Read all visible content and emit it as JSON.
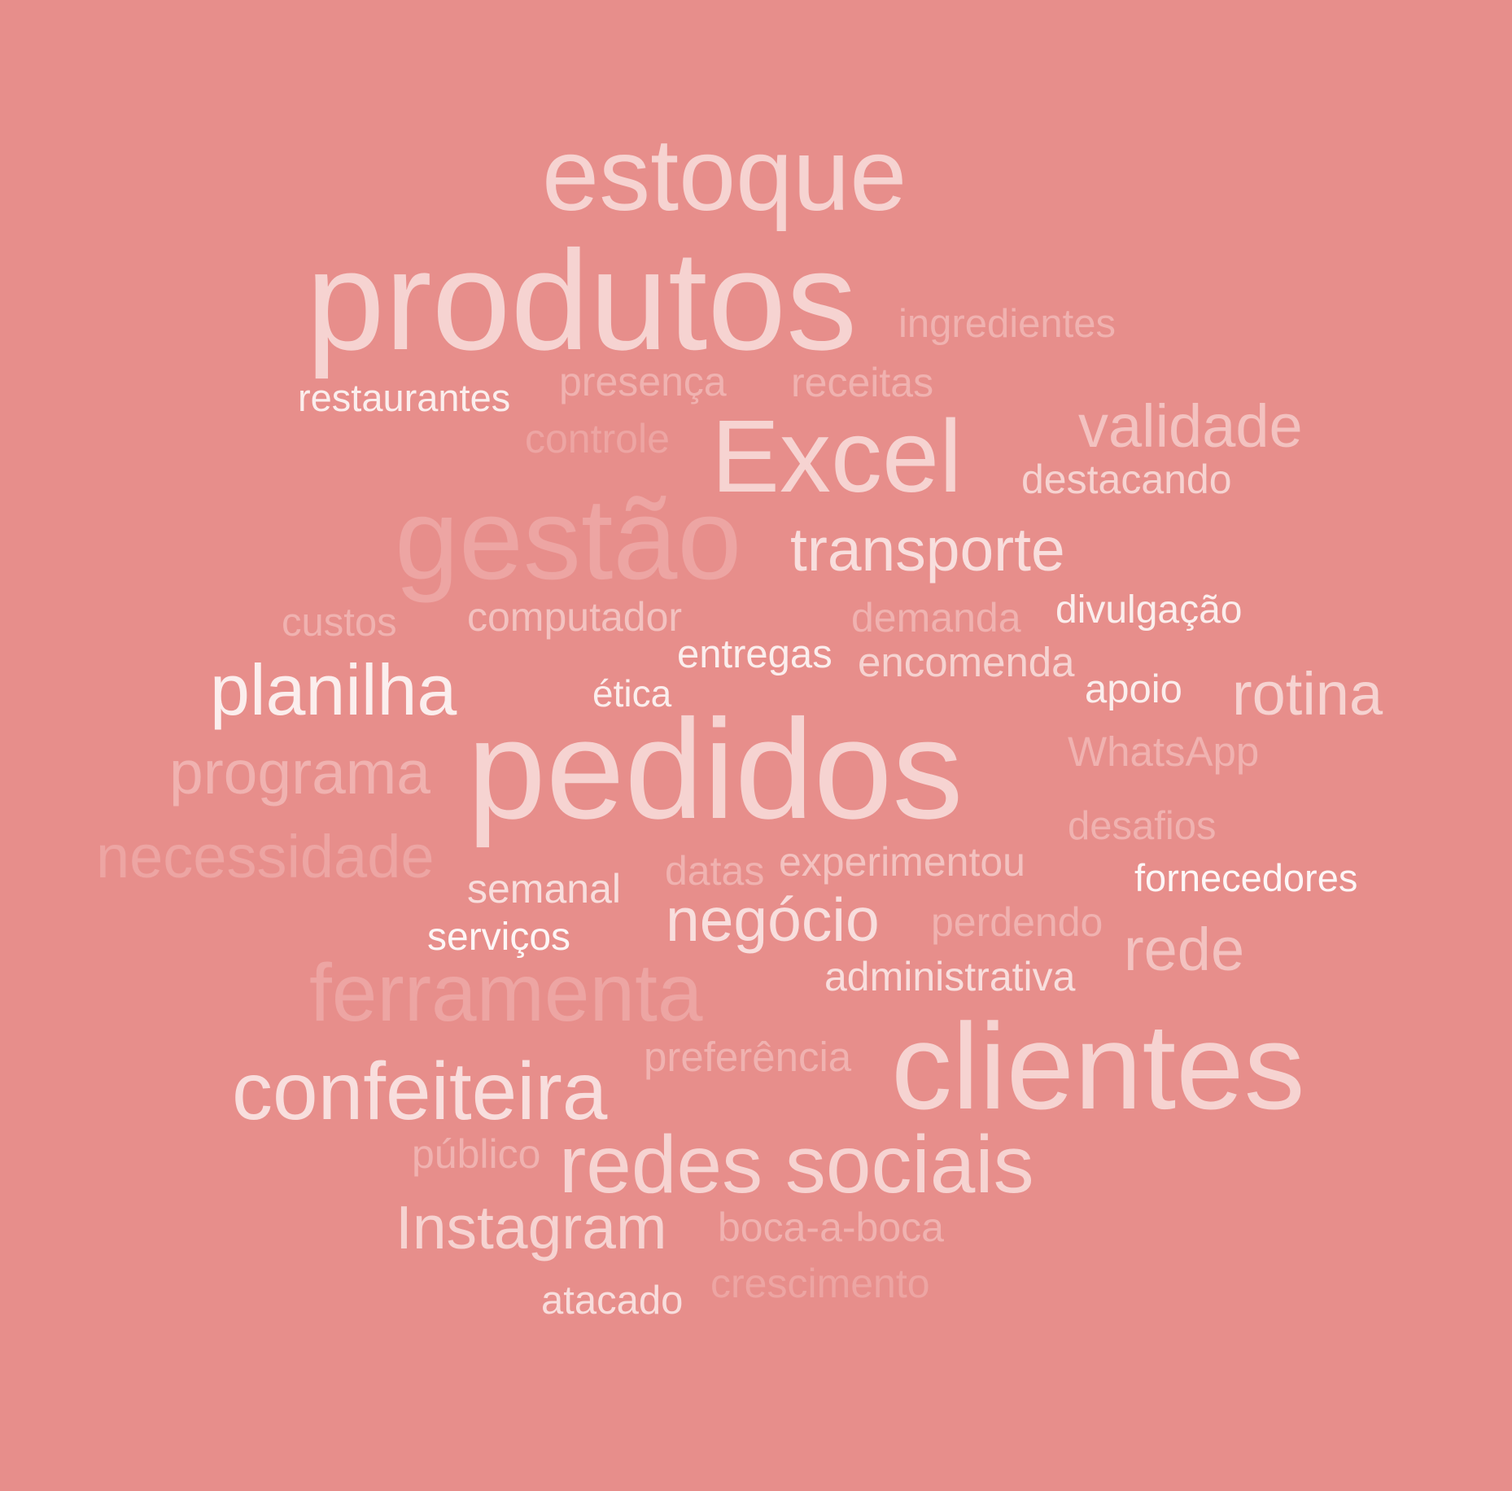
{
  "background_color": "#e78e8b",
  "words": [
    {
      "id": "estoque",
      "text": "estoque",
      "color": "#f6d3d1"
    },
    {
      "id": "produtos",
      "text": "produtos",
      "color": "#f6d3d1"
    },
    {
      "id": "ingredientes",
      "text": "ingredientes",
      "color": "#f0b2b0"
    },
    {
      "id": "restaurantes",
      "text": "restaurantes",
      "color": "#fbeeed"
    },
    {
      "id": "presenca",
      "text": "presença",
      "color": "#f0b2b0"
    },
    {
      "id": "receitas",
      "text": "receitas",
      "color": "#f0b2b0"
    },
    {
      "id": "controle",
      "text": "controle",
      "color": "#eda5a3"
    },
    {
      "id": "excel",
      "text": "Excel",
      "color": "#f6d3d1"
    },
    {
      "id": "validade",
      "text": "validade",
      "color": "#f3c2c0"
    },
    {
      "id": "destacando",
      "text": "destacando",
      "color": "#f6d3d1"
    },
    {
      "id": "gestao",
      "text": "gestão",
      "color": "#eda5a3"
    },
    {
      "id": "transporte",
      "text": "transporte",
      "color": "#f8dedd"
    },
    {
      "id": "custos",
      "text": "custos",
      "color": "#f0b2b0"
    },
    {
      "id": "computador",
      "text": "computador",
      "color": "#f3c2c0"
    },
    {
      "id": "demanda",
      "text": "demanda",
      "color": "#f0b2b0"
    },
    {
      "id": "divulgacao",
      "text": "divulgação",
      "color": "#fbeeed"
    },
    {
      "id": "entregas",
      "text": "entregas",
      "color": "#fbeeed"
    },
    {
      "id": "encomenda",
      "text": "encomenda",
      "color": "#f6d3d1"
    },
    {
      "id": "planilha",
      "text": "planilha",
      "color": "#fbeeed"
    },
    {
      "id": "etica",
      "text": "ética",
      "color": "#fbeeed"
    },
    {
      "id": "apoio",
      "text": "apoio",
      "color": "#fbeeed"
    },
    {
      "id": "rotina",
      "text": "rotina",
      "color": "#f6d3d1"
    },
    {
      "id": "pedidos",
      "text": "pedidos",
      "color": "#f6d3d1"
    },
    {
      "id": "programa",
      "text": "programa",
      "color": "#f0b2b0"
    },
    {
      "id": "whatsapp",
      "text": "WhatsApp",
      "color": "#f0b2b0"
    },
    {
      "id": "desafios",
      "text": "desafios",
      "color": "#f0b2b0"
    },
    {
      "id": "necessidade",
      "text": "necessidade",
      "color": "#eda5a3"
    },
    {
      "id": "experimentou",
      "text": "experimentou",
      "color": "#f3c2c0"
    },
    {
      "id": "datas",
      "text": "datas",
      "color": "#f0b2b0"
    },
    {
      "id": "semanal",
      "text": "semanal",
      "color": "#f8dedd"
    },
    {
      "id": "fornecedores",
      "text": "fornecedores",
      "color": "#fdf6f6"
    },
    {
      "id": "negocio",
      "text": "negócio",
      "color": "#f8dedd"
    },
    {
      "id": "perdendo",
      "text": "perdendo",
      "color": "#f0b2b0"
    },
    {
      "id": "servicos",
      "text": "serviços",
      "color": "#fdf6f6"
    },
    {
      "id": "rede",
      "text": "rede",
      "color": "#f3c2c0"
    },
    {
      "id": "ferramenta",
      "text": "ferramenta",
      "color": "#eda5a3"
    },
    {
      "id": "administrativa",
      "text": "administrativa",
      "color": "#f8dedd"
    },
    {
      "id": "preferencia",
      "text": "preferência",
      "color": "#f0b2b0"
    },
    {
      "id": "clientes",
      "text": "clientes",
      "color": "#f6d3d1"
    },
    {
      "id": "confeiteira",
      "text": "confeiteira",
      "color": "#f8dedd"
    },
    {
      "id": "publico",
      "text": "público",
      "color": "#f0b2b0"
    },
    {
      "id": "redes-sociais",
      "text": "redes sociais",
      "color": "#f6d3d1"
    },
    {
      "id": "instagram",
      "text": "Instagram",
      "color": "#f6d3d1"
    },
    {
      "id": "boca-a-boca",
      "text": "boca-a-boca",
      "color": "#f0b2b0"
    },
    {
      "id": "atacado",
      "text": "atacado",
      "color": "#f8dedd"
    },
    {
      "id": "crescimento",
      "text": "crescimento",
      "color": "#eda5a3"
    }
  ]
}
